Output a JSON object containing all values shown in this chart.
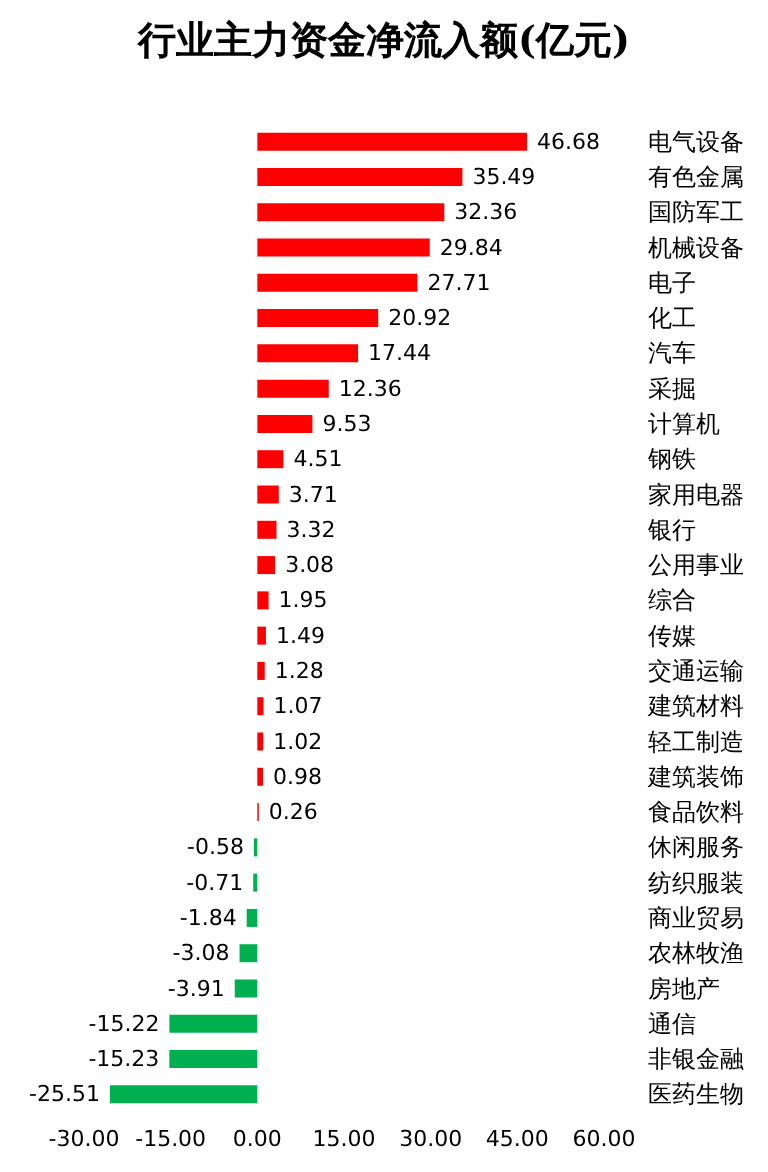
{
  "chart_data": {
    "type": "bar",
    "orientation": "horizontal",
    "title": "行业主力资金净流入额(亿元)",
    "categories": [
      "电气设备",
      "有色金属",
      "国防军工",
      "机械设备",
      "电子",
      "化工",
      "汽车",
      "采掘",
      "计算机",
      "钢铁",
      "家用电器",
      "银行",
      "公用事业",
      "综合",
      "传媒",
      "交通运输",
      "建筑材料",
      "轻工制造",
      "建筑装饰",
      "食品饮料",
      "休闲服务",
      "纺织服装",
      "商业贸易",
      "农林牧渔",
      "房地产",
      "通信",
      "非银金融",
      "医药生物"
    ],
    "values": [
      46.68,
      35.49,
      32.36,
      29.84,
      27.71,
      20.92,
      17.44,
      12.36,
      9.53,
      4.51,
      3.71,
      3.32,
      3.08,
      1.95,
      1.49,
      1.28,
      1.07,
      1.02,
      0.98,
      0.26,
      -0.58,
      -0.71,
      -1.84,
      -3.08,
      -3.91,
      -15.22,
      -15.23,
      -25.51
    ],
    "colors": [
      "#ff0000",
      "#ff0000",
      "#ff0000",
      "#ff0000",
      "#ff0000",
      "#ff0000",
      "#ff0000",
      "#ff0000",
      "#ff0000",
      "#ff0000",
      "#ff0000",
      "#ff0000",
      "#ff0000",
      "#ff0000",
      "#ff0000",
      "#ff0000",
      "#ff0000",
      "#ff0000",
      "#ff0000",
      "#ff0000",
      "#00b050",
      "#00b050",
      "#00b050",
      "#00b050",
      "#00b050",
      "#00b050",
      "#00b050",
      "#00b050"
    ],
    "xlim": [
      -30,
      60
    ],
    "xticks": [
      {
        "value": -30,
        "label": "-30.00"
      },
      {
        "value": -15,
        "label": "-15.00"
      },
      {
        "value": 0,
        "label": "0.00"
      },
      {
        "value": 15,
        "label": "15.00"
      },
      {
        "value": 30,
        "label": "30.00"
      },
      {
        "value": 45,
        "label": "45.00"
      },
      {
        "value": 60,
        "label": "60.00"
      }
    ],
    "data_labels": true
  }
}
